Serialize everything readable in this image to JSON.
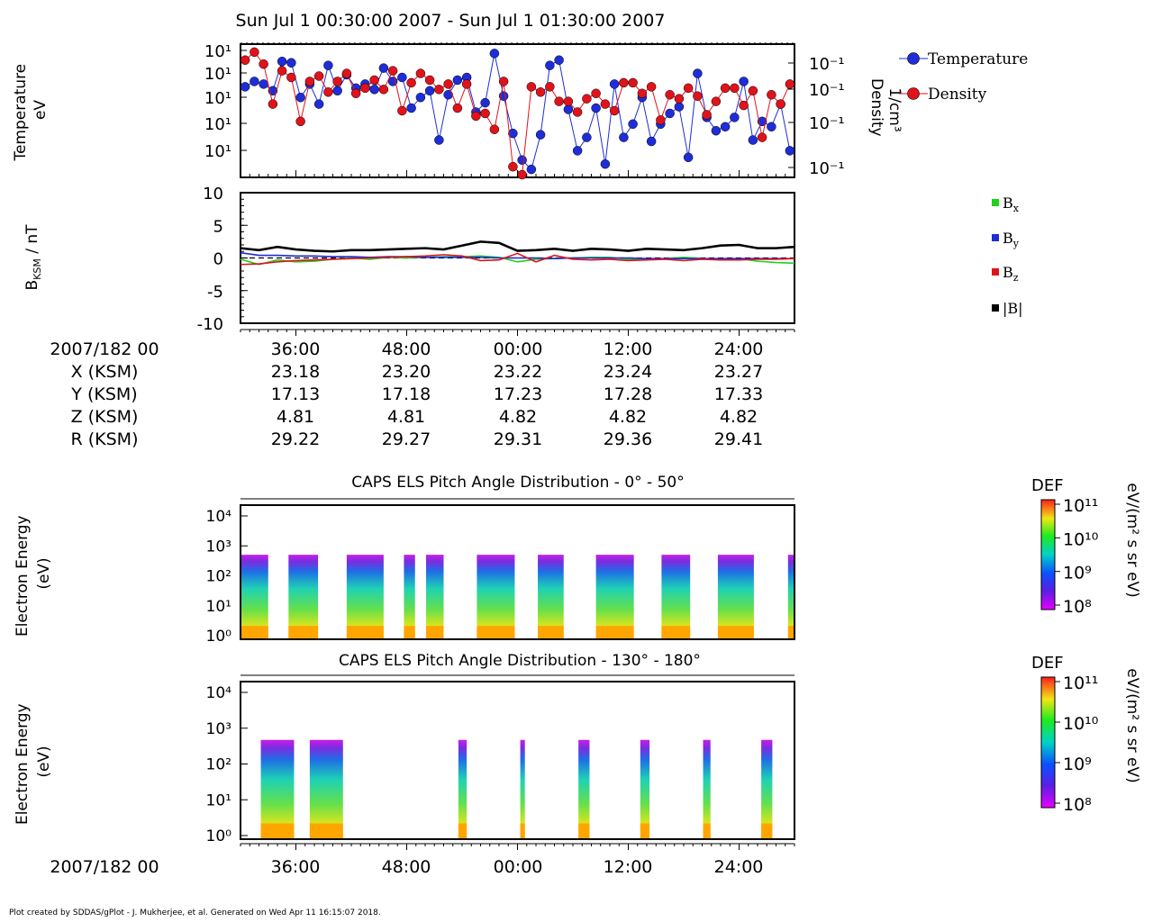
{
  "page": {
    "title": "Sun Jul 1 00:30:00 2007 - Sun Jul 1 01:30:00 2007",
    "footer": "Plot created by SDDAS/gPlot - J. Mukherjee, et al.  Generated on Wed Apr 11 16:15:07 2018."
  },
  "colors": {
    "temperature": "#1e2dd8",
    "density": "#e0131b",
    "bx": "#1ed21e",
    "by": "#1e2dd8",
    "bz": "#e0131b",
    "bmag": "#000000"
  },
  "time_axis": {
    "day_label": "2007/182 00",
    "ticks": [
      "36:00",
      "48:00",
      "00:00",
      "12:00",
      "24:00"
    ]
  },
  "ephemeris": [
    {
      "label": "X (KSM)",
      "values": [
        "23.18",
        "23.20",
        "23.22",
        "23.24",
        "23.27"
      ]
    },
    {
      "label": "Y (KSM)",
      "values": [
        "17.13",
        "17.18",
        "17.23",
        "17.28",
        "17.33"
      ]
    },
    {
      "label": "Z (KSM)",
      "values": [
        "4.81",
        "4.81",
        "4.82",
        "4.82",
        "4.82"
      ]
    },
    {
      "label": "R (KSM)",
      "values": [
        "29.22",
        "29.27",
        "29.31",
        "29.36",
        "29.41"
      ]
    }
  ],
  "chart_data": [
    {
      "type": "line",
      "ylabel": [
        "Temperature",
        "eV"
      ],
      "ylabel_right": [
        "Density",
        "1/cm³"
      ],
      "y_ticks_left": [
        "10¹",
        "10¹",
        "10¹",
        "10¹",
        "10¹"
      ],
      "y_ticks_right": [
        "10⁻¹",
        "10⁻¹",
        "10⁻¹",
        "10⁻¹"
      ],
      "legend": [
        "Temperature",
        "Density"
      ],
      "x": [
        0.5,
        1.5,
        2.5,
        3.5,
        4.5,
        5.5,
        6.5,
        7.5,
        8.5,
        9.5,
        10.5,
        11.5,
        12.5,
        13.5,
        14.5,
        15.5,
        16.5,
        17.5,
        18.5,
        19.5,
        20.5,
        21.5,
        22.5,
        23.5,
        24.5,
        25.5,
        26.5,
        27.5,
        28.5,
        29.5,
        30.5,
        31.5,
        32.5,
        33.5,
        34.5,
        35.5,
        36.5,
        37.5,
        38.5,
        39.5,
        40.5,
        41.5,
        42.5,
        43.5,
        44.5,
        45.5,
        46.5,
        47.5,
        48.5,
        49.5,
        50.5,
        51.5,
        52.5,
        53.5,
        54.5,
        55.5,
        56.5,
        57.5,
        58.5,
        59.5
      ],
      "series": [
        {
          "name": "Temperature",
          "values": [
            0.68,
            0.72,
            0.7,
            0.65,
            0.87,
            0.86,
            0.6,
            0.7,
            0.55,
            0.84,
            0.65,
            0.77,
            0.67,
            0.7,
            0.66,
            0.82,
            0.72,
            0.75,
            0.52,
            0.6,
            0.65,
            0.28,
            0.62,
            0.73,
            0.75,
            0.49,
            0.56,
            0.93,
            0.61,
            0.33,
            0.13,
            0.06,
            0.32,
            0.84,
            0.88,
            0.51,
            0.2,
            0.3,
            0.52,
            0.1,
            0.7,
            0.3,
            0.4,
            0.6,
            0.27,
            0.4,
            0.48,
            0.53,
            0.15,
            0.78,
            0.45,
            0.35,
            0.38,
            0.45,
            0.72,
            0.28,
            0.42,
            0.38,
            0.55,
            0.2
          ]
        },
        {
          "name": "Density",
          "values": [
            0.88,
            0.94,
            0.85,
            0.55,
            0.8,
            0.75,
            0.42,
            0.72,
            0.76,
            0.64,
            0.72,
            0.78,
            0.63,
            0.67,
            0.73,
            0.66,
            0.8,
            0.5,
            0.71,
            0.78,
            0.73,
            0.66,
            0.7,
            0.52,
            0.7,
            0.46,
            0.48,
            0.36,
            0.72,
            0.08,
            0.02,
            0.68,
            0.64,
            0.68,
            0.57,
            0.57,
            0.49,
            0.59,
            0.63,
            0.55,
            0.5,
            0.71,
            0.71,
            0.63,
            0.68,
            0.43,
            0.62,
            0.59,
            0.67,
            0.61,
            0.47,
            0.57,
            0.67,
            0.67,
            0.54,
            0.65,
            0.3,
            0.62,
            0.55,
            0.7
          ]
        }
      ]
    },
    {
      "type": "line",
      "ylabel": "B_KSM / nT",
      "ylim": [
        -10,
        10
      ],
      "y_ticks": [
        10,
        5,
        0,
        -5,
        -10
      ],
      "legend": [
        "Bx",
        "By",
        "Bz",
        "|B|"
      ],
      "x": [
        0,
        2,
        4,
        6,
        8,
        10,
        12,
        14,
        16,
        18,
        20,
        22,
        24,
        26,
        28,
        30,
        32,
        34,
        36,
        38,
        40,
        42,
        44,
        46,
        48,
        50,
        52,
        54,
        56,
        58,
        60
      ],
      "series": [
        {
          "name": "Bx",
          "values": [
            -0.2,
            -1.0,
            -0.3,
            -0.6,
            -0.5,
            -0.2,
            0.0,
            -0.2,
            0.1,
            0.0,
            0.1,
            0.2,
            0.2,
            0.3,
            0.1,
            -0.6,
            -0.2,
            -0.1,
            0.0,
            0.1,
            0.1,
            -0.2,
            -0.2,
            -0.1,
            0.1,
            -0.1,
            -0.3,
            -0.1,
            -0.5,
            -0.7,
            -0.8
          ]
        },
        {
          "name": "By",
          "values": [
            0.8,
            0.4,
            0.4,
            0.3,
            0.3,
            0.2,
            0.2,
            0.1,
            0.2,
            0.2,
            0.1,
            0.1,
            0.1,
            0.1,
            0.0,
            0.0,
            0.0,
            -0.1,
            0.0,
            0.0,
            0.0,
            0.0,
            -0.1,
            -0.1,
            -0.1,
            -0.1,
            -0.1,
            -0.1,
            -0.1,
            -0.1,
            -0.1
          ]
        },
        {
          "name": "Bz",
          "values": [
            -1.0,
            -0.9,
            -0.6,
            -0.4,
            -0.3,
            -0.2,
            -0.1,
            0.0,
            0.1,
            0.2,
            0.3,
            0.5,
            0.3,
            -0.4,
            -0.3,
            0.7,
            -0.6,
            0.4,
            -0.2,
            -0.3,
            -0.2,
            -0.4,
            -0.3,
            -0.2,
            -0.4,
            -0.2,
            -0.3,
            -0.3,
            -0.2,
            -0.2,
            -0.1
          ]
        },
        {
          "name": "|B|",
          "values": [
            1.5,
            1.2,
            1.7,
            1.3,
            1.1,
            1.0,
            1.2,
            1.2,
            1.3,
            1.4,
            1.5,
            1.3,
            1.9,
            2.5,
            2.3,
            1.1,
            1.2,
            1.4,
            1.1,
            1.4,
            1.3,
            1.1,
            1.4,
            1.3,
            1.2,
            1.5,
            1.9,
            2.0,
            1.5,
            1.5,
            1.7
          ]
        }
      ]
    },
    {
      "type": "heatmap",
      "title": "CAPS ELS Pitch Angle Distribution - 0° - 50°",
      "ylabel": [
        "Electron Energy",
        "(eV)"
      ],
      "y_ticks": [
        "10⁴",
        "10³",
        "10²",
        "10¹",
        "10⁰"
      ],
      "colorbar": {
        "title": "DEF",
        "units": "eV/(m² s sr eV)",
        "ticks": [
          "10¹¹",
          "10¹⁰",
          "10⁹",
          "10⁸"
        ]
      },
      "data_intervals_min": [
        [
          0.0,
          3.0
        ],
        [
          5.2,
          8.4
        ],
        [
          11.5,
          15.5
        ],
        [
          17.7,
          18.9
        ],
        [
          20.1,
          22.0
        ],
        [
          25.6,
          29.7
        ],
        [
          32.2,
          35.0
        ],
        [
          38.5,
          42.6
        ],
        [
          45.6,
          48.7
        ],
        [
          51.7,
          55.6
        ],
        [
          59.3,
          60.0
        ]
      ]
    },
    {
      "type": "heatmap",
      "title": "CAPS ELS Pitch Angle Distribution - 130° - 180°",
      "ylabel": [
        "Electron Energy",
        "(eV)"
      ],
      "y_ticks": [
        "10⁴",
        "10³",
        "10²",
        "10¹",
        "10⁰"
      ],
      "colorbar": {
        "title": "DEF",
        "units": "eV/(m² s sr eV)",
        "ticks": [
          "10¹¹",
          "10¹⁰",
          "10⁹",
          "10⁸"
        ]
      },
      "data_intervals_min": [
        [
          2.2,
          5.8
        ],
        [
          7.5,
          11.1
        ],
        [
          23.6,
          24.5
        ],
        [
          30.3,
          30.8
        ],
        [
          36.6,
          37.8
        ],
        [
          43.3,
          44.3
        ],
        [
          50.1,
          50.9
        ],
        [
          56.4,
          57.6
        ]
      ]
    }
  ]
}
